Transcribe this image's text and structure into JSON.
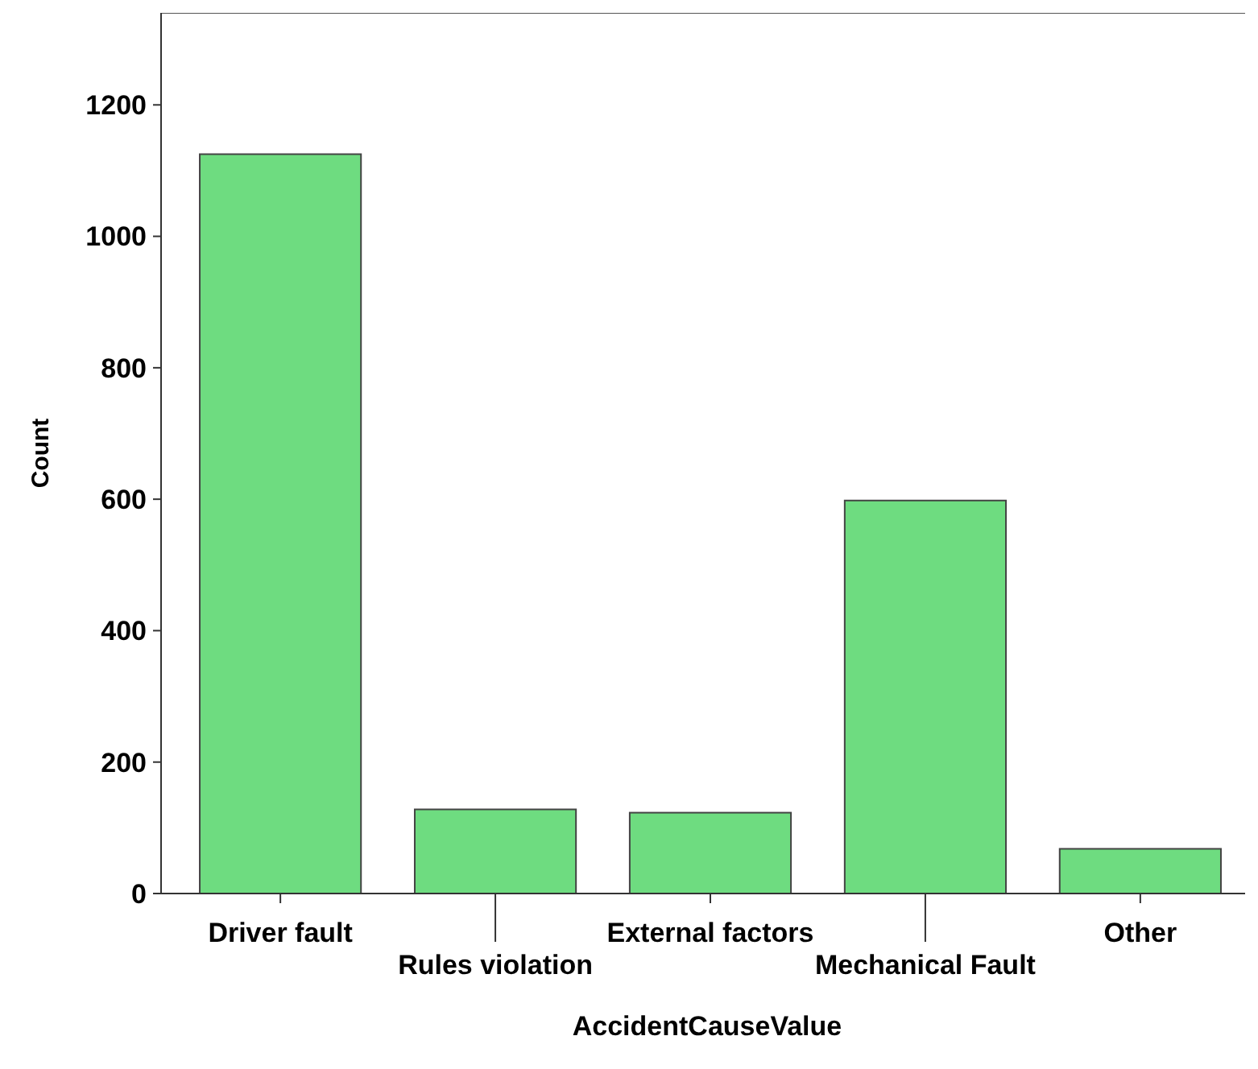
{
  "chart_data": {
    "type": "bar",
    "xlabel": "AccidentCauseValue",
    "ylabel": "Count",
    "categories": [
      "Driver fault",
      "Rules violation",
      "External factors",
      "Mechanical Fault",
      "Other"
    ],
    "values": [
      1125,
      128,
      123,
      598,
      68
    ],
    "color": "#6edc80",
    "ylim": [
      0,
      1340
    ],
    "yticks": [
      0,
      200,
      400,
      600,
      800,
      1000,
      1200
    ],
    "grid": false
  }
}
